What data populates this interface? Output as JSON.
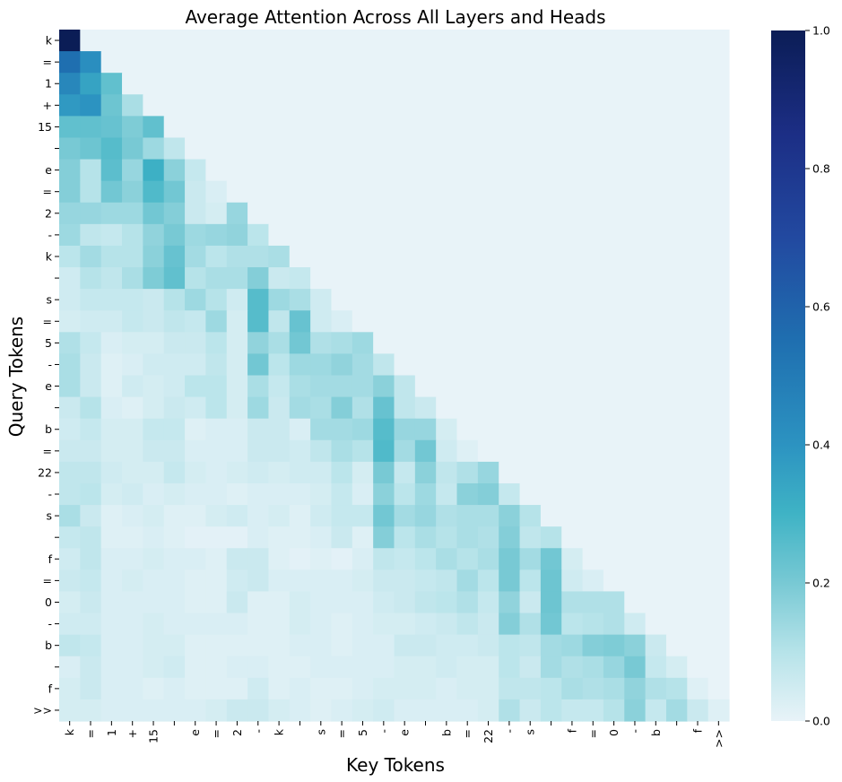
{
  "chart_data": {
    "type": "heatmap",
    "title": "Average Attention Across All Layers and Heads",
    "xlabel": "Key Tokens",
    "ylabel": "Query Tokens",
    "tokens": [
      "k",
      "=",
      "1",
      "+",
      "15",
      " ",
      "e",
      "=",
      "2",
      "-",
      "k",
      " ",
      "s",
      "=",
      "5",
      "-",
      "e",
      " ",
      "b",
      "=",
      "22",
      "-",
      "s",
      " ",
      "f",
      "=",
      "0",
      "-",
      "b",
      " ",
      "f",
      ">>"
    ],
    "x_tick_labels": [
      "k",
      "=",
      "1",
      "+",
      "15",
      " ",
      "e",
      "=",
      "2",
      "-",
      "k",
      " ",
      "s",
      "=",
      "5",
      "-",
      "e",
      " ",
      "b",
      "=",
      "22",
      "-",
      "s",
      " ",
      "f",
      "=",
      "0",
      "-",
      "b",
      " ",
      "f",
      ">>"
    ],
    "y_tick_labels": [
      "k",
      "=",
      "1",
      "+",
      "15",
      " ",
      "e",
      "=",
      "2",
      "-",
      "k",
      " ",
      "s",
      "=",
      "5",
      "-",
      "e",
      " ",
      "b",
      "=",
      "22",
      "-",
      "s",
      " ",
      "f",
      "=",
      "0",
      "-",
      "b",
      " ",
      "f",
      ">>"
    ],
    "colorbar": {
      "ticks": [
        0.0,
        0.2,
        0.4,
        0.6,
        0.8,
        1.0
      ],
      "tick_labels": [
        "0.0",
        "0.2",
        "0.4",
        "0.6",
        "0.8",
        "1.0"
      ],
      "vmin": 0.0,
      "vmax": 1.0,
      "colormap_stops": [
        [
          0.0,
          "#e8f3f8"
        ],
        [
          0.1,
          "#b6e3e9"
        ],
        [
          0.2,
          "#78c9d4"
        ],
        [
          0.3,
          "#3fb3c5"
        ],
        [
          0.4,
          "#2c93c1"
        ],
        [
          0.55,
          "#1f6fb0"
        ],
        [
          0.7,
          "#2249a0"
        ],
        [
          0.85,
          "#1c2e85"
        ],
        [
          1.0,
          "#0b1d56"
        ]
      ]
    },
    "masked_color": "#e8f3f8",
    "values": [
      [
        1.0
      ],
      [
        0.55,
        0.42
      ],
      [
        0.45,
        0.35,
        0.24
      ],
      [
        0.38,
        0.4,
        0.22,
        0.12
      ],
      [
        0.24,
        0.24,
        0.23,
        0.19,
        0.24
      ],
      [
        0.2,
        0.22,
        0.26,
        0.2,
        0.14,
        0.08
      ],
      [
        0.18,
        0.1,
        0.25,
        0.15,
        0.31,
        0.17,
        0.07
      ],
      [
        0.18,
        0.1,
        0.21,
        0.17,
        0.27,
        0.21,
        0.06,
        0.03
      ],
      [
        0.15,
        0.15,
        0.14,
        0.14,
        0.21,
        0.18,
        0.06,
        0.04,
        0.15
      ],
      [
        0.14,
        0.08,
        0.07,
        0.1,
        0.16,
        0.2,
        0.14,
        0.15,
        0.16,
        0.09
      ],
      [
        0.09,
        0.13,
        0.1,
        0.1,
        0.17,
        0.23,
        0.13,
        0.09,
        0.11,
        0.11,
        0.12
      ],
      [
        0.05,
        0.1,
        0.08,
        0.12,
        0.19,
        0.24,
        0.1,
        0.12,
        0.12,
        0.18,
        0.06,
        0.07
      ],
      [
        0.05,
        0.07,
        0.07,
        0.07,
        0.06,
        0.1,
        0.14,
        0.1,
        0.05,
        0.26,
        0.14,
        0.12,
        0.05
      ],
      [
        0.04,
        0.05,
        0.05,
        0.07,
        0.06,
        0.08,
        0.07,
        0.14,
        0.04,
        0.26,
        0.08,
        0.23,
        0.05,
        0.03
      ],
      [
        0.11,
        0.07,
        0.03,
        0.04,
        0.04,
        0.06,
        0.06,
        0.09,
        0.04,
        0.16,
        0.12,
        0.21,
        0.11,
        0.12,
        0.14
      ],
      [
        0.12,
        0.06,
        0.02,
        0.03,
        0.05,
        0.05,
        0.05,
        0.08,
        0.04,
        0.21,
        0.09,
        0.14,
        0.14,
        0.16,
        0.13,
        0.08
      ],
      [
        0.12,
        0.06,
        0.02,
        0.05,
        0.04,
        0.05,
        0.09,
        0.09,
        0.04,
        0.12,
        0.07,
        0.12,
        0.13,
        0.13,
        0.13,
        0.17,
        0.08
      ],
      [
        0.06,
        0.1,
        0.03,
        0.02,
        0.04,
        0.06,
        0.05,
        0.09,
        0.04,
        0.14,
        0.06,
        0.13,
        0.12,
        0.18,
        0.11,
        0.23,
        0.08,
        0.06
      ],
      [
        0.05,
        0.07,
        0.04,
        0.04,
        0.07,
        0.07,
        0.02,
        0.03,
        0.03,
        0.06,
        0.06,
        0.03,
        0.13,
        0.13,
        0.14,
        0.26,
        0.15,
        0.15,
        0.04
      ],
      [
        0.06,
        0.06,
        0.04,
        0.04,
        0.06,
        0.06,
        0.03,
        0.03,
        0.03,
        0.06,
        0.06,
        0.05,
        0.08,
        0.12,
        0.1,
        0.27,
        0.13,
        0.21,
        0.05,
        0.02
      ],
      [
        0.08,
        0.08,
        0.05,
        0.04,
        0.04,
        0.07,
        0.04,
        0.03,
        0.04,
        0.05,
        0.04,
        0.05,
        0.05,
        0.09,
        0.04,
        0.2,
        0.07,
        0.17,
        0.08,
        0.11,
        0.15
      ],
      [
        0.08,
        0.09,
        0.04,
        0.05,
        0.03,
        0.04,
        0.03,
        0.03,
        0.02,
        0.03,
        0.03,
        0.03,
        0.04,
        0.07,
        0.03,
        0.17,
        0.09,
        0.14,
        0.07,
        0.17,
        0.18,
        0.07
      ],
      [
        0.12,
        0.06,
        0.02,
        0.03,
        0.04,
        0.02,
        0.02,
        0.04,
        0.05,
        0.03,
        0.04,
        0.02,
        0.05,
        0.07,
        0.07,
        0.21,
        0.13,
        0.15,
        0.11,
        0.12,
        0.12,
        0.17,
        0.1
      ],
      [
        0.07,
        0.08,
        0.02,
        0.02,
        0.03,
        0.02,
        0.01,
        0.01,
        0.01,
        0.03,
        0.02,
        0.02,
        0.03,
        0.06,
        0.02,
        0.18,
        0.09,
        0.12,
        0.1,
        0.12,
        0.11,
        0.18,
        0.08,
        0.1
      ],
      [
        0.05,
        0.08,
        0.03,
        0.03,
        0.04,
        0.03,
        0.03,
        0.02,
        0.06,
        0.06,
        0.02,
        0.01,
        0.02,
        0.01,
        0.03,
        0.08,
        0.07,
        0.09,
        0.12,
        0.1,
        0.12,
        0.2,
        0.13,
        0.21,
        0.04
      ],
      [
        0.06,
        0.07,
        0.03,
        0.04,
        0.03,
        0.03,
        0.02,
        0.02,
        0.05,
        0.06,
        0.03,
        0.03,
        0.03,
        0.03,
        0.04,
        0.06,
        0.06,
        0.07,
        0.08,
        0.13,
        0.09,
        0.2,
        0.09,
        0.22,
        0.05,
        0.03
      ],
      [
        0.04,
        0.06,
        0.03,
        0.03,
        0.03,
        0.03,
        0.02,
        0.02,
        0.06,
        0.02,
        0.02,
        0.04,
        0.03,
        0.03,
        0.03,
        0.05,
        0.06,
        0.08,
        0.09,
        0.11,
        0.07,
        0.16,
        0.06,
        0.22,
        0.11,
        0.11,
        0.11
      ],
      [
        0.05,
        0.05,
        0.03,
        0.03,
        0.04,
        0.03,
        0.03,
        0.03,
        0.03,
        0.02,
        0.02,
        0.04,
        0.03,
        0.02,
        0.03,
        0.04,
        0.04,
        0.05,
        0.06,
        0.08,
        0.06,
        0.18,
        0.11,
        0.21,
        0.09,
        0.1,
        0.11,
        0.05
      ],
      [
        0.08,
        0.07,
        0.03,
        0.03,
        0.04,
        0.04,
        0.02,
        0.02,
        0.02,
        0.02,
        0.02,
        0.03,
        0.03,
        0.02,
        0.03,
        0.03,
        0.06,
        0.06,
        0.05,
        0.05,
        0.06,
        0.09,
        0.08,
        0.13,
        0.14,
        0.18,
        0.19,
        0.17,
        0.06
      ],
      [
        0.03,
        0.06,
        0.03,
        0.03,
        0.04,
        0.05,
        0.02,
        0.02,
        0.03,
        0.03,
        0.02,
        0.02,
        0.03,
        0.03,
        0.03,
        0.03,
        0.04,
        0.04,
        0.05,
        0.04,
        0.04,
        0.09,
        0.06,
        0.13,
        0.11,
        0.12,
        0.15,
        0.2,
        0.07,
        0.04
      ],
      [
        0.04,
        0.06,
        0.03,
        0.03,
        0.02,
        0.03,
        0.02,
        0.02,
        0.02,
        0.05,
        0.02,
        0.03,
        0.02,
        0.02,
        0.03,
        0.04,
        0.04,
        0.04,
        0.03,
        0.04,
        0.04,
        0.08,
        0.08,
        0.09,
        0.12,
        0.11,
        0.12,
        0.16,
        0.11,
        0.1,
        0.02
      ],
      [
        0.04,
        0.04,
        0.03,
        0.03,
        0.03,
        0.03,
        0.03,
        0.04,
        0.06,
        0.06,
        0.04,
        0.03,
        0.02,
        0.03,
        0.04,
        0.05,
        0.03,
        0.03,
        0.03,
        0.03,
        0.04,
        0.11,
        0.06,
        0.09,
        0.07,
        0.07,
        0.1,
        0.17,
        0.07,
        0.13,
        0.06,
        0.02
      ]
    ]
  }
}
